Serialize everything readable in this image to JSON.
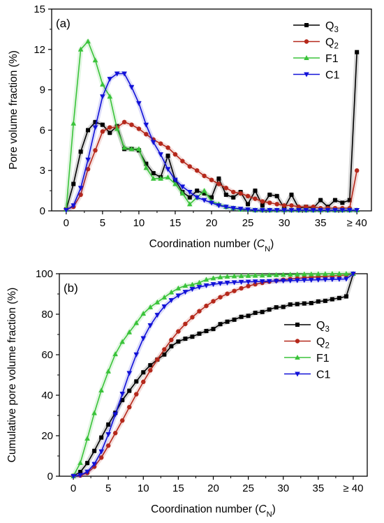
{
  "chart_data": [
    {
      "type": "line",
      "panel_label": "(a)",
      "xlabel": "Coordination number (C",
      "xlabel_sub": "N",
      "xlabel_end": ")",
      "ylabel": "Pore volume fraction (%)",
      "xlim": [
        -2,
        42
      ],
      "ylim": [
        0,
        15
      ],
      "x_ticks": [
        0,
        5,
        10,
        15,
        20,
        25,
        30,
        35,
        40
      ],
      "x_tick_labels": [
        "0",
        "5",
        "10",
        "15",
        "20",
        "25",
        "30",
        "35",
        "≥ 40"
      ],
      "y_ticks": [
        0,
        3,
        6,
        9,
        12,
        15
      ],
      "y_tick_labels": [
        "0",
        "3",
        "6",
        "9",
        "12",
        "15"
      ],
      "grid": false,
      "legend_position": "top-right",
      "series": [
        {
          "name": "Q",
          "name_sub": "3",
          "color": "#000000",
          "marker": "square",
          "x": [
            0,
            1,
            2,
            3,
            4,
            5,
            6,
            7,
            8,
            9,
            10,
            11,
            12,
            13,
            14,
            15,
            16,
            17,
            18,
            19,
            20,
            21,
            22,
            23,
            24,
            25,
            26,
            27,
            28,
            29,
            30,
            31,
            32,
            33,
            34,
            35,
            36,
            37,
            38,
            39,
            40
          ],
          "y": [
            0.1,
            2.0,
            4.4,
            6.0,
            6.6,
            6.4,
            5.8,
            6.3,
            4.6,
            4.6,
            4.5,
            3.5,
            2.8,
            2.5,
            4.1,
            2.3,
            1.4,
            1.0,
            1.5,
            1.3,
            1.0,
            2.4,
            1.2,
            1.0,
            1.4,
            0.5,
            1.5,
            0.4,
            1.2,
            1.1,
            0.2,
            1.2,
            0.2,
            0.3,
            0.2,
            0.8,
            0.3,
            0.8,
            0.6,
            0.8,
            11.8
          ]
        },
        {
          "name": "Q",
          "name_sub": "2",
          "color": "#b5281b",
          "marker": "circle",
          "x": [
            0,
            1,
            2,
            3,
            4,
            5,
            6,
            7,
            8,
            9,
            10,
            11,
            12,
            13,
            14,
            15,
            16,
            17,
            18,
            19,
            20,
            21,
            22,
            23,
            24,
            25,
            26,
            27,
            28,
            29,
            30,
            31,
            32,
            33,
            34,
            35,
            36,
            37,
            38,
            39,
            40
          ],
          "y": [
            0.1,
            0.3,
            1.2,
            3.1,
            4.5,
            5.9,
            6.2,
            6.2,
            6.6,
            6.4,
            6.1,
            5.7,
            5.3,
            5.0,
            4.7,
            4.2,
            3.7,
            3.3,
            3.0,
            2.6,
            2.3,
            2.0,
            1.7,
            1.4,
            1.3,
            1.1,
            0.9,
            0.7,
            0.6,
            0.5,
            0.4,
            0.4,
            0.3,
            0.3,
            0.3,
            0.2,
            0.2,
            0.2,
            0.2,
            0.2,
            3.0
          ]
        },
        {
          "name": "F1",
          "color": "#3ac33a",
          "marker": "triangle-up",
          "x": [
            0,
            1,
            2,
            3,
            4,
            5,
            6,
            7,
            8,
            9,
            10,
            11,
            12,
            13,
            14,
            15,
            16,
            17,
            18,
            19,
            20,
            21,
            22,
            23,
            24,
            25,
            26,
            27,
            28,
            29,
            30,
            31,
            32,
            33,
            34,
            35,
            36,
            37,
            38,
            39,
            40
          ],
          "y": [
            0.1,
            6.5,
            12.0,
            12.6,
            11.2,
            9.4,
            8.5,
            6.1,
            4.7,
            4.6,
            4.6,
            3.2,
            2.4,
            2.4,
            2.5,
            2.0,
            1.3,
            0.5,
            1.0,
            1.5,
            0.7,
            0.5,
            0.3,
            0.2,
            0.1,
            0.1,
            0.05,
            0.05,
            0.05,
            0.05,
            0.05,
            0.05,
            0.05,
            0.05,
            0.05,
            0.05,
            0.05,
            0.05,
            0.05,
            0.05,
            0.05
          ]
        },
        {
          "name": "C1",
          "color": "#1111d8",
          "marker": "triangle-down",
          "x": [
            0,
            1,
            2,
            3,
            4,
            5,
            6,
            7,
            8,
            9,
            10,
            11,
            12,
            13,
            14,
            15,
            16,
            17,
            18,
            19,
            20,
            21,
            22,
            23,
            24,
            25,
            26,
            27,
            28,
            29,
            30,
            31,
            32,
            33,
            34,
            35,
            36,
            37,
            38,
            39,
            40
          ],
          "y": [
            0.05,
            0.4,
            1.7,
            3.8,
            6.2,
            8.5,
            9.8,
            10.2,
            10.2,
            9.2,
            8.0,
            6.4,
            5.1,
            4.2,
            3.1,
            2.3,
            1.8,
            1.4,
            1.0,
            0.8,
            0.6,
            0.4,
            0.3,
            0.2,
            0.15,
            0.1,
            0.05,
            0.05,
            0.05,
            0.05,
            0.05,
            0.05,
            0.05,
            0.05,
            0.05,
            0.05,
            0.05,
            0.05,
            0.05,
            0.05,
            0.05
          ]
        }
      ]
    },
    {
      "type": "line",
      "panel_label": "(b)",
      "xlabel": "Coordination number (C",
      "xlabel_sub": "N",
      "xlabel_end": ")",
      "ylabel": "Cumulative pore volume fraction (%)",
      "xlim": [
        -2,
        42
      ],
      "ylim": [
        0,
        100
      ],
      "x_ticks": [
        0,
        5,
        10,
        15,
        20,
        25,
        30,
        35,
        40
      ],
      "x_tick_labels": [
        "0",
        "5",
        "10",
        "15",
        "20",
        "25",
        "30",
        "35",
        "≥ 40"
      ],
      "y_ticks": [
        0,
        20,
        40,
        60,
        80,
        100
      ],
      "y_tick_labels": [
        "0",
        "20",
        "40",
        "60",
        "80",
        "100"
      ],
      "grid": false,
      "legend_position": "center-right",
      "series": [
        {
          "name": "Q",
          "name_sub": "3",
          "color": "#000000",
          "marker": "square",
          "x": [
            0,
            1,
            2,
            3,
            4,
            5,
            6,
            7,
            8,
            9,
            10,
            11,
            12,
            13,
            14,
            15,
            16,
            17,
            18,
            19,
            20,
            21,
            22,
            23,
            24,
            25,
            26,
            27,
            28,
            29,
            30,
            31,
            32,
            33,
            34,
            35,
            36,
            37,
            38,
            39,
            40
          ],
          "y": [
            0.1,
            2.1,
            6.5,
            12.5,
            19.1,
            25.5,
            31.3,
            37.6,
            42.2,
            46.8,
            51.3,
            54.8,
            57.6,
            60.1,
            64.2,
            66.5,
            67.9,
            68.9,
            70.4,
            71.7,
            72.7,
            75.1,
            76.3,
            77.3,
            78.7,
            79.2,
            80.7,
            81.1,
            82.3,
            83.4,
            83.6,
            84.8,
            85.0,
            85.3,
            85.5,
            86.3,
            86.6,
            87.4,
            88.0,
            88.8,
            100
          ]
        },
        {
          "name": "Q",
          "name_sub": "2",
          "color": "#b5281b",
          "marker": "circle",
          "x": [
            0,
            1,
            2,
            3,
            4,
            5,
            6,
            7,
            8,
            9,
            10,
            11,
            12,
            13,
            14,
            15,
            16,
            17,
            18,
            19,
            20,
            21,
            22,
            23,
            24,
            25,
            26,
            27,
            28,
            29,
            30,
            31,
            32,
            33,
            34,
            35,
            36,
            37,
            38,
            39,
            40
          ],
          "y": [
            0.1,
            0.4,
            1.6,
            4.7,
            9.2,
            15.1,
            21.3,
            27.5,
            34.1,
            40.5,
            46.6,
            52.3,
            57.6,
            62.6,
            67.3,
            71.5,
            75.2,
            78.5,
            81.5,
            84.1,
            86.4,
            88.4,
            90.1,
            91.5,
            92.8,
            93.9,
            94.8,
            95.5,
            96.1,
            96.6,
            97.0,
            97.4,
            97.7,
            98.0,
            98.3,
            98.5,
            98.7,
            98.9,
            99.1,
            99.3,
            100
          ]
        },
        {
          "name": "F1",
          "color": "#3ac33a",
          "marker": "triangle-up",
          "x": [
            0,
            1,
            2,
            3,
            4,
            5,
            6,
            7,
            8,
            9,
            10,
            11,
            12,
            13,
            14,
            15,
            16,
            17,
            18,
            19,
            20,
            21,
            22,
            23,
            24,
            25,
            26,
            27,
            28,
            29,
            30,
            31,
            32,
            33,
            34,
            35,
            36,
            37,
            38,
            39,
            40
          ],
          "y": [
            0.1,
            6.6,
            18.6,
            31.2,
            42.4,
            51.8,
            60.3,
            66.4,
            71.1,
            75.7,
            80.3,
            83.5,
            85.9,
            88.3,
            90.8,
            92.8,
            94.1,
            94.6,
            95.6,
            97.1,
            97.8,
            98.3,
            98.6,
            98.8,
            98.9,
            99.0,
            99.1,
            99.2,
            99.3,
            99.4,
            99.5,
            99.6,
            99.7,
            99.8,
            99.8,
            99.9,
            99.9,
            100,
            100,
            100,
            100
          ]
        },
        {
          "name": "C1",
          "color": "#1111d8",
          "marker": "triangle-down",
          "x": [
            0,
            1,
            2,
            3,
            4,
            5,
            6,
            7,
            8,
            9,
            10,
            11,
            12,
            13,
            14,
            15,
            16,
            17,
            18,
            19,
            20,
            21,
            22,
            23,
            24,
            25,
            26,
            27,
            28,
            29,
            30,
            31,
            32,
            33,
            34,
            35,
            36,
            37,
            38,
            39,
            40
          ],
          "y": [
            0.05,
            0.5,
            2.2,
            6.0,
            12.2,
            20.7,
            30.5,
            40.7,
            50.9,
            60.1,
            68.1,
            74.5,
            79.6,
            83.8,
            86.9,
            89.2,
            91.0,
            92.4,
            93.4,
            94.2,
            94.8,
            95.2,
            95.5,
            95.7,
            95.9,
            96.0,
            96.1,
            96.2,
            96.3,
            96.4,
            96.5,
            96.6,
            96.7,
            96.8,
            96.9,
            97.0,
            97.1,
            97.2,
            97.3,
            97.4,
            100
          ]
        }
      ]
    }
  ]
}
